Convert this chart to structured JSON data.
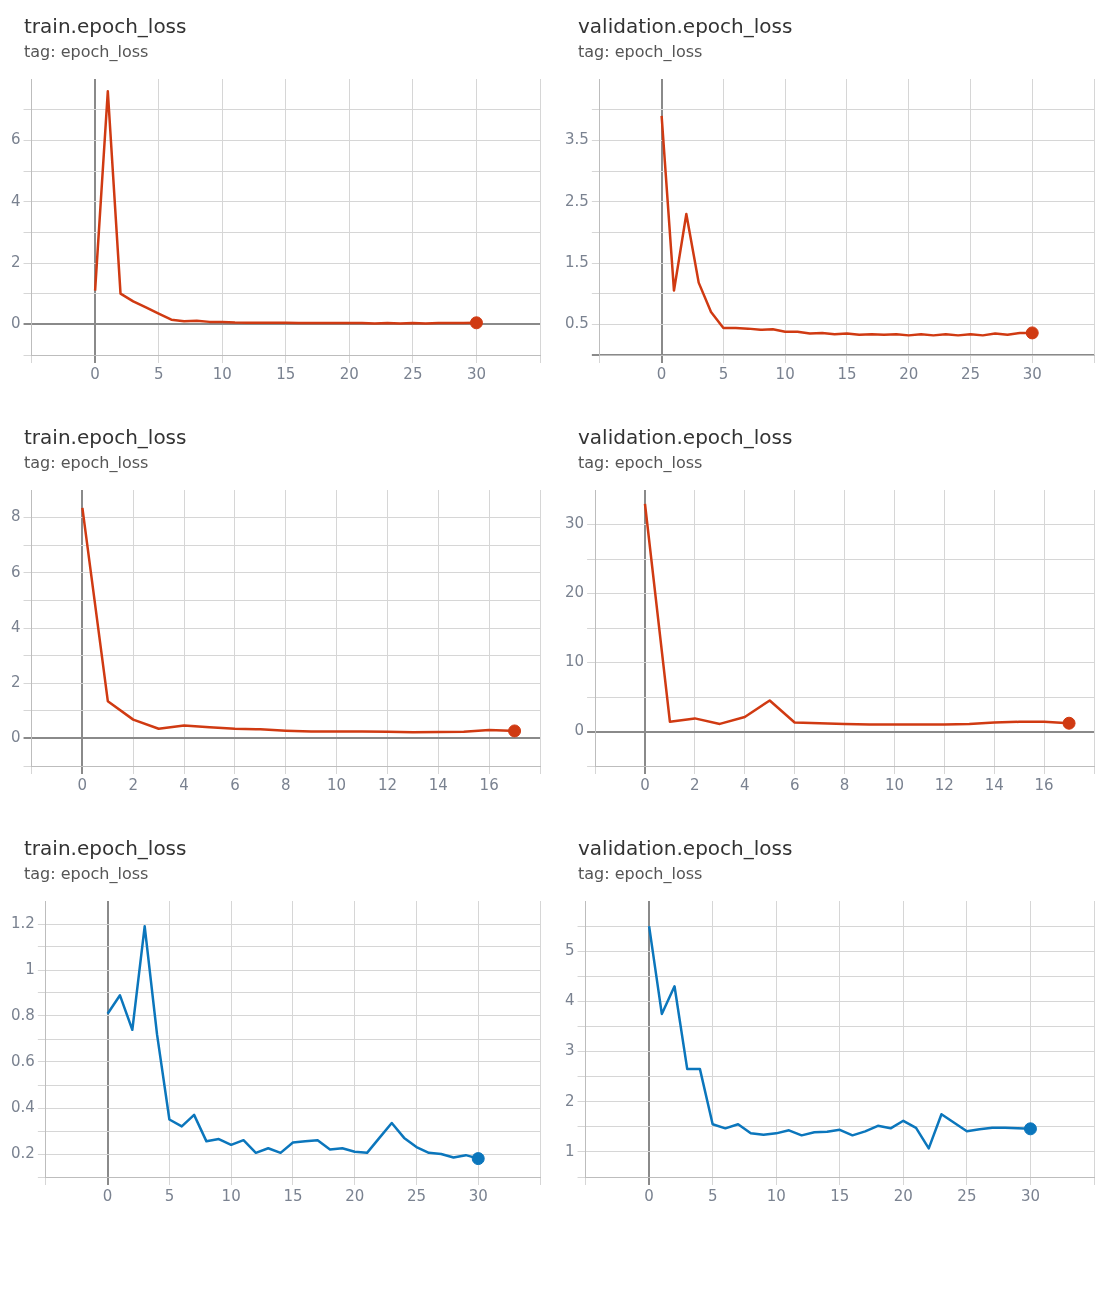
{
  "chart_data": [
    {
      "type": "line",
      "title": "train.epoch_loss",
      "subtitle": "tag: epoch_loss",
      "grid": true,
      "legend": false,
      "xlim": [
        -5,
        35
      ],
      "xticks": [
        {
          "value": -5,
          "label": null
        },
        0,
        5,
        10,
        15,
        20,
        25,
        30,
        {
          "value": 35,
          "label": null
        }
      ],
      "ylim": [
        -1,
        8
      ],
      "yticks": [
        {
          "value": -1,
          "label": null
        },
        0,
        {
          "value": 1,
          "label": null
        },
        2,
        {
          "value": 3,
          "label": null
        },
        4,
        {
          "value": 5,
          "label": null
        },
        6,
        {
          "value": 7,
          "label": null
        }
      ],
      "series": [
        {
          "color": "#d03a12",
          "x": [
            0,
            1,
            2,
            3,
            4,
            5,
            6,
            7,
            8,
            9,
            10,
            11,
            12,
            13,
            14,
            15,
            16,
            17,
            18,
            19,
            20,
            21,
            22,
            23,
            24,
            25,
            26,
            27,
            28,
            29,
            30
          ],
          "values": [
            1.1,
            7.6,
            1.0,
            0.75,
            0.55,
            0.35,
            0.15,
            0.1,
            0.12,
            0.08,
            0.08,
            0.06,
            0.05,
            0.05,
            0.05,
            0.05,
            0.04,
            0.04,
            0.04,
            0.04,
            0.04,
            0.04,
            0.03,
            0.04,
            0.03,
            0.04,
            0.03,
            0.04,
            0.04,
            0.04,
            0.05
          ]
        },
        {
          "type": "scatter",
          "color": "#d03a12",
          "marker": "circle",
          "x": [
            30
          ],
          "values": [
            0.05
          ]
        }
      ]
    },
    {
      "type": "line",
      "title": "validation.epoch_loss",
      "subtitle": "tag: epoch_loss",
      "grid": true,
      "legend": false,
      "xlim": [
        -5,
        35
      ],
      "xticks": [
        {
          "value": -5,
          "label": null
        },
        0,
        5,
        10,
        15,
        20,
        25,
        30,
        {
          "value": 35,
          "label": null
        }
      ],
      "ylim": [
        0,
        4.5
      ],
      "yticks": [
        {
          "value": 0,
          "label": null
        },
        0.5,
        {
          "value": 1,
          "label": null
        },
        1.5,
        {
          "value": 2,
          "label": null
        },
        2.5,
        {
          "value": 3,
          "label": null
        },
        3.5,
        {
          "value": 4,
          "label": null
        }
      ],
      "series": [
        {
          "color": "#d03a12",
          "x": [
            0,
            1,
            2,
            3,
            4,
            5,
            6,
            7,
            8,
            9,
            10,
            11,
            12,
            13,
            14,
            15,
            16,
            17,
            18,
            19,
            20,
            21,
            22,
            23,
            24,
            25,
            26,
            27,
            28,
            29,
            30
          ],
          "values": [
            3.9,
            1.05,
            2.3,
            1.18,
            0.7,
            0.44,
            0.44,
            0.43,
            0.41,
            0.42,
            0.38,
            0.38,
            0.35,
            0.36,
            0.34,
            0.35,
            0.33,
            0.34,
            0.33,
            0.34,
            0.32,
            0.34,
            0.32,
            0.34,
            0.32,
            0.34,
            0.32,
            0.35,
            0.33,
            0.36,
            0.36
          ]
        },
        {
          "type": "scatter",
          "color": "#d03a12",
          "marker": "circle",
          "x": [
            30
          ],
          "values": [
            0.36
          ]
        }
      ]
    },
    {
      "type": "line",
      "title": "train.epoch_loss",
      "subtitle": "tag: epoch_loss",
      "grid": true,
      "legend": false,
      "xlim": [
        -2,
        18
      ],
      "xticks": [
        {
          "value": -2,
          "label": null
        },
        0,
        2,
        4,
        6,
        8,
        10,
        12,
        14,
        16,
        {
          "value": 18,
          "label": null
        }
      ],
      "ylim": [
        -1,
        9
      ],
      "yticks": [
        {
          "value": -1,
          "label": null
        },
        0,
        {
          "value": 1,
          "label": null
        },
        2,
        {
          "value": 3,
          "label": null
        },
        4,
        {
          "value": 5,
          "label": null
        },
        6,
        {
          "value": 7,
          "label": null
        },
        8
      ],
      "series": [
        {
          "color": "#d03a12",
          "x": [
            0,
            1,
            2,
            3,
            4,
            5,
            6,
            7,
            8,
            9,
            10,
            11,
            12,
            13,
            14,
            15,
            16,
            17
          ],
          "values": [
            8.35,
            1.35,
            0.68,
            0.35,
            0.47,
            0.4,
            0.35,
            0.33,
            0.28,
            0.25,
            0.25,
            0.25,
            0.24,
            0.22,
            0.23,
            0.24,
            0.3,
            0.27
          ]
        },
        {
          "type": "scatter",
          "color": "#d03a12",
          "marker": "circle",
          "x": [
            17
          ],
          "values": [
            0.27
          ]
        }
      ]
    },
    {
      "type": "line",
      "title": "validation.epoch_loss",
      "subtitle": "tag: epoch_loss",
      "grid": true,
      "legend": false,
      "xlim": [
        -2,
        18
      ],
      "xticks": [
        {
          "value": -2,
          "label": null
        },
        0,
        2,
        4,
        6,
        8,
        10,
        12,
        14,
        16,
        {
          "value": 18,
          "label": null
        }
      ],
      "ylim": [
        -5,
        35
      ],
      "yticks": [
        {
          "value": -5,
          "label": null
        },
        0,
        {
          "value": 5,
          "label": null
        },
        10,
        {
          "value": 15,
          "label": null
        },
        20,
        {
          "value": 25,
          "label": null
        },
        30
      ],
      "series": [
        {
          "color": "#d03a12",
          "x": [
            0,
            1,
            2,
            3,
            4,
            5,
            6,
            7,
            8,
            9,
            10,
            11,
            12,
            13,
            14,
            15,
            16,
            17
          ],
          "values": [
            33,
            1.4,
            1.9,
            1.1,
            2.1,
            4.5,
            1.3,
            1.2,
            1.1,
            1.0,
            1.0,
            1.0,
            1.0,
            1.1,
            1.3,
            1.4,
            1.4,
            1.2
          ]
        },
        {
          "type": "scatter",
          "color": "#d03a12",
          "marker": "circle",
          "x": [
            17
          ],
          "values": [
            1.2
          ]
        }
      ]
    },
    {
      "type": "line",
      "title": "train.epoch_loss",
      "subtitle": "tag: epoch_loss",
      "grid": true,
      "legend": false,
      "xlim": [
        -5,
        35
      ],
      "xticks": [
        {
          "value": -5,
          "label": null
        },
        0,
        5,
        10,
        15,
        20,
        25,
        30,
        {
          "value": 35,
          "label": null
        }
      ],
      "ylim": [
        0.1,
        1.3
      ],
      "yticks": [
        {
          "value": 0.1,
          "label": null
        },
        0.2,
        {
          "value": 0.3,
          "label": null
        },
        0.4,
        {
          "value": 0.5,
          "label": null
        },
        0.6,
        {
          "value": 0.7,
          "label": null
        },
        0.8,
        {
          "value": 0.9,
          "label": null
        },
        1,
        {
          "value": 1.1,
          "label": null
        },
        1.2
      ],
      "series": [
        {
          "color": "#0b76bc",
          "x": [
            0,
            1,
            2,
            3,
            4,
            5,
            6,
            7,
            8,
            9,
            10,
            11,
            12,
            13,
            14,
            15,
            16,
            17,
            18,
            19,
            20,
            21,
            22,
            23,
            24,
            25,
            26,
            27,
            28,
            29,
            30
          ],
          "values": [
            0.81,
            0.89,
            0.74,
            1.19,
            0.72,
            0.35,
            0.32,
            0.37,
            0.255,
            0.265,
            0.24,
            0.26,
            0.205,
            0.225,
            0.205,
            0.25,
            0.255,
            0.26,
            0.22,
            0.225,
            0.21,
            0.205,
            0.27,
            0.335,
            0.27,
            0.23,
            0.205,
            0.2,
            0.185,
            0.195,
            0.18
          ]
        },
        {
          "type": "scatter",
          "color": "#0b76bc",
          "marker": "circle",
          "x": [
            30
          ],
          "values": [
            0.18
          ]
        }
      ]
    },
    {
      "type": "line",
      "title": "validation.epoch_loss",
      "subtitle": "tag: epoch_loss",
      "grid": true,
      "legend": false,
      "xlim": [
        -5,
        35
      ],
      "xticks": [
        {
          "value": -5,
          "label": null
        },
        0,
        5,
        10,
        15,
        20,
        25,
        30,
        {
          "value": 35,
          "label": null
        }
      ],
      "ylim": [
        0.5,
        6
      ],
      "yticks": [
        {
          "value": 0.5,
          "label": null
        },
        1,
        {
          "value": 1.5,
          "label": null
        },
        2,
        {
          "value": 2.5,
          "label": null
        },
        3,
        {
          "value": 3.5,
          "label": null
        },
        4,
        {
          "value": 4.5,
          "label": null
        },
        5,
        {
          "value": 5.5,
          "label": null
        }
      ],
      "series": [
        {
          "color": "#0b76bc",
          "x": [
            0,
            1,
            2,
            3,
            4,
            5,
            6,
            7,
            8,
            9,
            10,
            11,
            12,
            13,
            14,
            15,
            16,
            17,
            18,
            19,
            20,
            21,
            22,
            23,
            24,
            25,
            26,
            27,
            28,
            29,
            30
          ],
          "values": [
            5.5,
            3.75,
            4.3,
            2.65,
            2.65,
            1.55,
            1.47,
            1.55,
            1.37,
            1.34,
            1.37,
            1.43,
            1.33,
            1.39,
            1.4,
            1.44,
            1.33,
            1.41,
            1.52,
            1.47,
            1.62,
            1.48,
            1.07,
            1.75,
            1.58,
            1.41,
            1.45,
            1.48,
            1.48,
            1.47,
            1.46
          ]
        },
        {
          "type": "scatter",
          "color": "#0b76bc",
          "marker": "circle",
          "x": [
            30
          ],
          "values": [
            1.46
          ]
        }
      ]
    }
  ]
}
